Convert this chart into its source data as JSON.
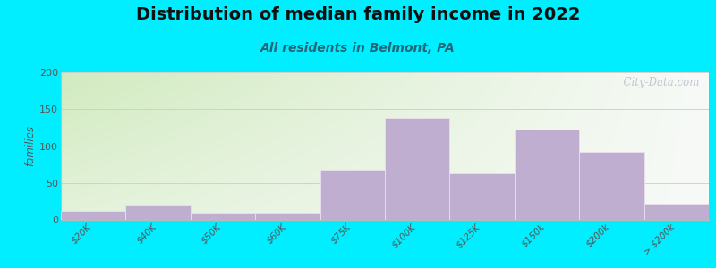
{
  "title": "Distribution of median family income in 2022",
  "subtitle": "All residents in Belmont, PA",
  "ylabel": "families",
  "categories": [
    "$20K",
    "$40K",
    "$50K",
    "$60K",
    "$75K",
    "$100K",
    "$125K",
    "$150k",
    "$200k",
    "> $200k"
  ],
  "values": [
    12,
    20,
    10,
    10,
    68,
    138,
    63,
    122,
    92,
    22
  ],
  "bar_color": "#c0aed0",
  "bar_edge_color": "#e8e0f0",
  "ylim": [
    0,
    200
  ],
  "yticks": [
    0,
    50,
    100,
    150,
    200
  ],
  "background_outer": "#00eeff",
  "title_fontsize": 14,
  "subtitle_fontsize": 10,
  "watermark": "  City-Data.com"
}
